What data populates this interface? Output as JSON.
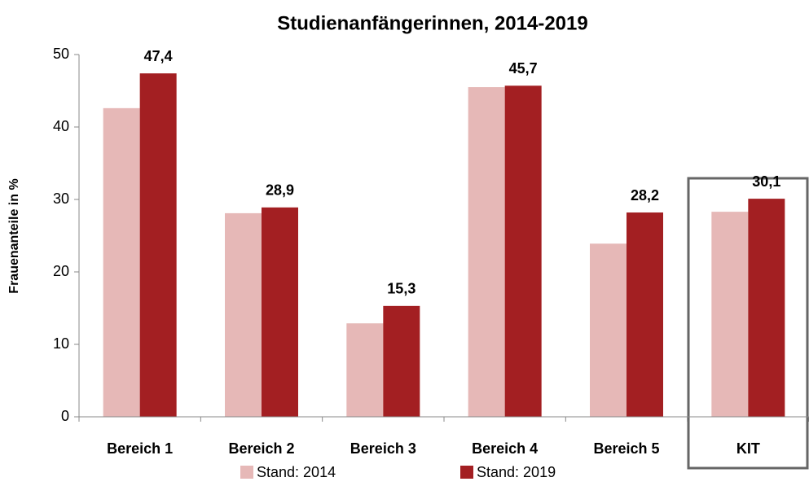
{
  "chart_data": {
    "type": "bar",
    "title": "Studienanfängerinnen, 2014-2019",
    "y_label": "Frauenanteile in %",
    "categories": [
      "Bereich 1",
      "Bereich 2",
      "Bereich 3",
      "Bereich 4",
      "Bereich 5",
      "KIT"
    ],
    "series": [
      {
        "name": "Stand: 2014",
        "color": "#e6b8b7",
        "values": [
          42.6,
          28.1,
          12.9,
          45.5,
          23.9,
          28.3
        ]
      },
      {
        "name": "Stand: 2019",
        "color": "#a31f22",
        "values": [
          47.4,
          28.9,
          15.3,
          45.7,
          28.2,
          30.1
        ],
        "value_labels": [
          "47,4",
          "28,9",
          "15,3",
          "45,7",
          "28,2",
          "30,1"
        ]
      }
    ],
    "ylim": [
      0,
      50
    ],
    "yticks": [
      0,
      10,
      20,
      30,
      40,
      50
    ],
    "grid": false,
    "legend": "bottom"
  }
}
